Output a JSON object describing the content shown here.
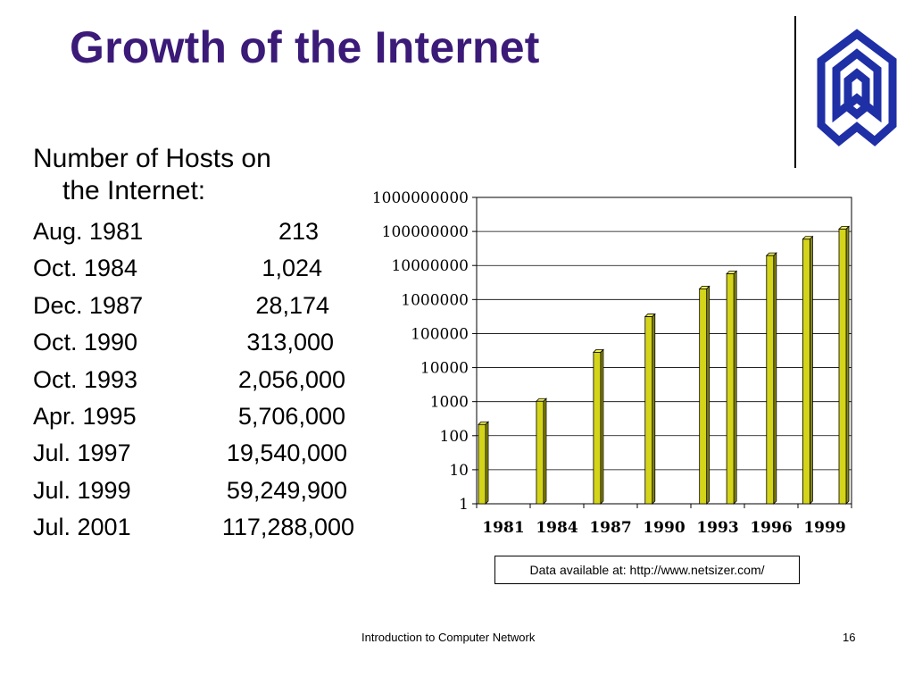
{
  "slide": {
    "title": "Growth of the Internet",
    "subheading_line1": "Number of Hosts on",
    "subheading_line2": "the Internet:",
    "rows": [
      {
        "date": "Aug. 1981",
        "value": "213"
      },
      {
        "date": "Oct. 1984",
        "value": "1,024"
      },
      {
        "date": "Dec. 1987",
        "value": "28,174"
      },
      {
        "date": "Oct. 1990",
        "value": "313,000"
      },
      {
        "date": "Oct. 1993",
        "value": "2,056,000"
      },
      {
        "date": "Apr. 1995",
        "value": "5,706,000"
      },
      {
        "date": "Jul. 1997",
        "value": "19,540,000"
      },
      {
        "date": "Jul. 1999",
        "value": "59,249,900"
      },
      {
        "date": "Jul. 2001",
        "value": "117,288,000"
      }
    ],
    "source_note": "Data available at: http://www.netsizer.com/",
    "footer": "Introduction to Computer Network",
    "page_number": "16",
    "logo_color": "#1f2fa6",
    "title_color": "#3b1a78"
  },
  "chart_data": {
    "type": "bar",
    "title": "",
    "xlabel": "",
    "ylabel": "",
    "y_scale": "log",
    "ylim": [
      1,
      1000000000
    ],
    "grid": true,
    "legend": "none",
    "bar_color": "#d4d41a",
    "y_tick_labels": [
      "1",
      "10",
      "100",
      "1000",
      "10000",
      "100000",
      "1000000",
      "10000000",
      "100000000",
      "1000000000"
    ],
    "x_tick_labels": [
      "1981",
      "1984",
      "1987",
      "1990",
      "1993",
      "1996",
      "1999"
    ],
    "bars": [
      {
        "label": "Aug. 1981",
        "value": 213
      },
      {
        "label": "Oct. 1984",
        "value": 1024
      },
      {
        "label": "Dec. 1987",
        "value": 28174
      },
      {
        "label": "Oct. 1990",
        "value": 313000
      },
      {
        "label": "Oct. 1993",
        "value": 2056000
      },
      {
        "label": "Apr. 1995",
        "value": 5706000
      },
      {
        "label": "Jul. 1997",
        "value": 19540000
      },
      {
        "label": "Jul. 1999",
        "value": 59249900
      },
      {
        "label": "Jul. 2001",
        "value": 117288000
      }
    ]
  }
}
